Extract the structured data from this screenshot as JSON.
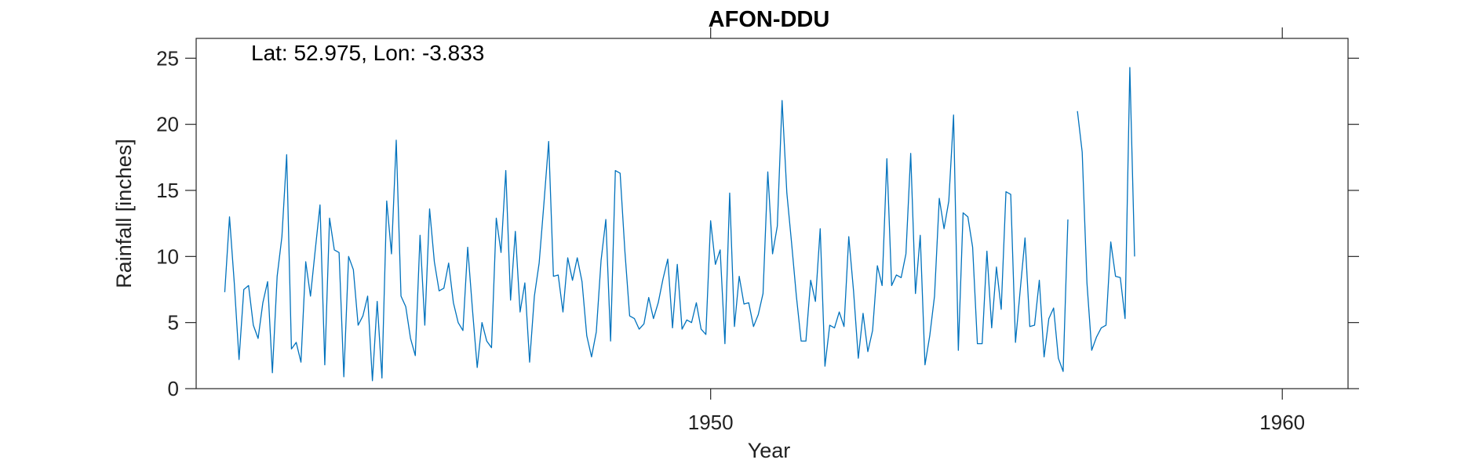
{
  "chart_data": {
    "type": "line",
    "title": "AFON-DDU",
    "xlabel": "Year",
    "ylabel": "Rainfall [inches]",
    "annotation": "Lat: 52.975, Lon: -3.833",
    "xlim": [
      1941.0,
      1961.15
    ],
    "ylim": [
      0,
      26.5
    ],
    "x_ticks": [
      1950,
      1960
    ],
    "y_ticks": [
      0,
      5,
      10,
      15,
      20,
      25
    ],
    "grid": false,
    "color": "#0072BD",
    "series": [
      {
        "x_start": 1941.5,
        "x_step": 0.08333,
        "values": [
          7.3,
          13.0,
          8.0,
          2.2,
          7.5,
          7.8,
          4.8,
          3.8,
          6.5,
          8.1,
          1.2,
          8.5,
          11.5,
          17.7,
          3.0,
          3.5,
          2.0,
          9.6,
          7.0,
          10.5,
          13.9,
          1.8,
          12.9,
          10.5,
          10.3,
          0.9,
          10.0,
          9.0,
          4.8,
          5.5,
          7.0,
          0.6,
          6.6,
          0.8,
          14.2,
          10.2,
          18.8,
          7.0,
          6.2,
          3.8,
          2.5,
          11.6,
          4.8,
          13.6,
          9.6,
          7.4,
          7.6,
          9.5,
          6.5,
          5.0,
          4.4,
          10.7,
          6.0,
          1.6,
          5.0,
          3.6,
          3.1,
          12.9,
          10.3,
          16.5,
          6.7,
          11.9,
          5.8,
          8.0,
          2.0,
          7.0,
          9.5,
          14.0,
          18.7,
          8.5,
          8.6,
          5.8,
          9.9,
          8.2,
          9.9,
          8.1,
          4.0,
          2.4,
          4.3,
          9.7,
          12.8,
          3.6,
          16.5,
          16.3,
          10.4,
          5.5,
          5.3,
          4.5,
          4.9,
          6.9,
          5.3,
          6.5,
          8.3,
          9.8,
          4.6,
          9.4,
          4.5,
          5.2,
          5.0,
          6.5,
          4.5,
          4.1,
          12.7,
          9.4,
          10.5,
          3.4,
          14.8,
          4.7,
          8.5,
          6.4,
          6.5,
          4.7,
          5.6,
          7.2,
          16.4,
          10.2,
          12.3,
          21.8,
          14.8,
          11.0,
          7.0,
          3.6,
          3.6,
          8.2,
          6.6,
          12.1,
          1.7,
          4.8,
          4.6,
          5.8,
          4.7,
          11.5,
          7.4,
          2.3,
          5.7,
          2.8,
          4.4,
          9.3,
          7.8,
          17.4,
          7.8,
          8.6,
          8.4,
          10.2,
          17.8,
          7.2,
          11.6,
          1.8,
          4.0,
          7.0,
          14.4,
          12.1,
          14.2,
          20.7,
          2.9,
          13.3,
          13.0,
          10.7,
          3.4,
          3.4,
          10.4,
          4.6,
          9.2,
          6.0,
          14.9,
          14.7,
          3.5,
          7.5,
          11.4,
          4.7,
          4.8,
          8.2,
          2.4,
          5.3,
          6.1,
          2.3,
          1.3,
          12.8,
          null,
          21.0,
          17.9,
          8.0,
          2.9,
          3.9,
          4.6,
          4.8,
          11.1,
          8.5,
          8.4,
          5.3,
          24.3,
          10.0
        ]
      }
    ]
  }
}
